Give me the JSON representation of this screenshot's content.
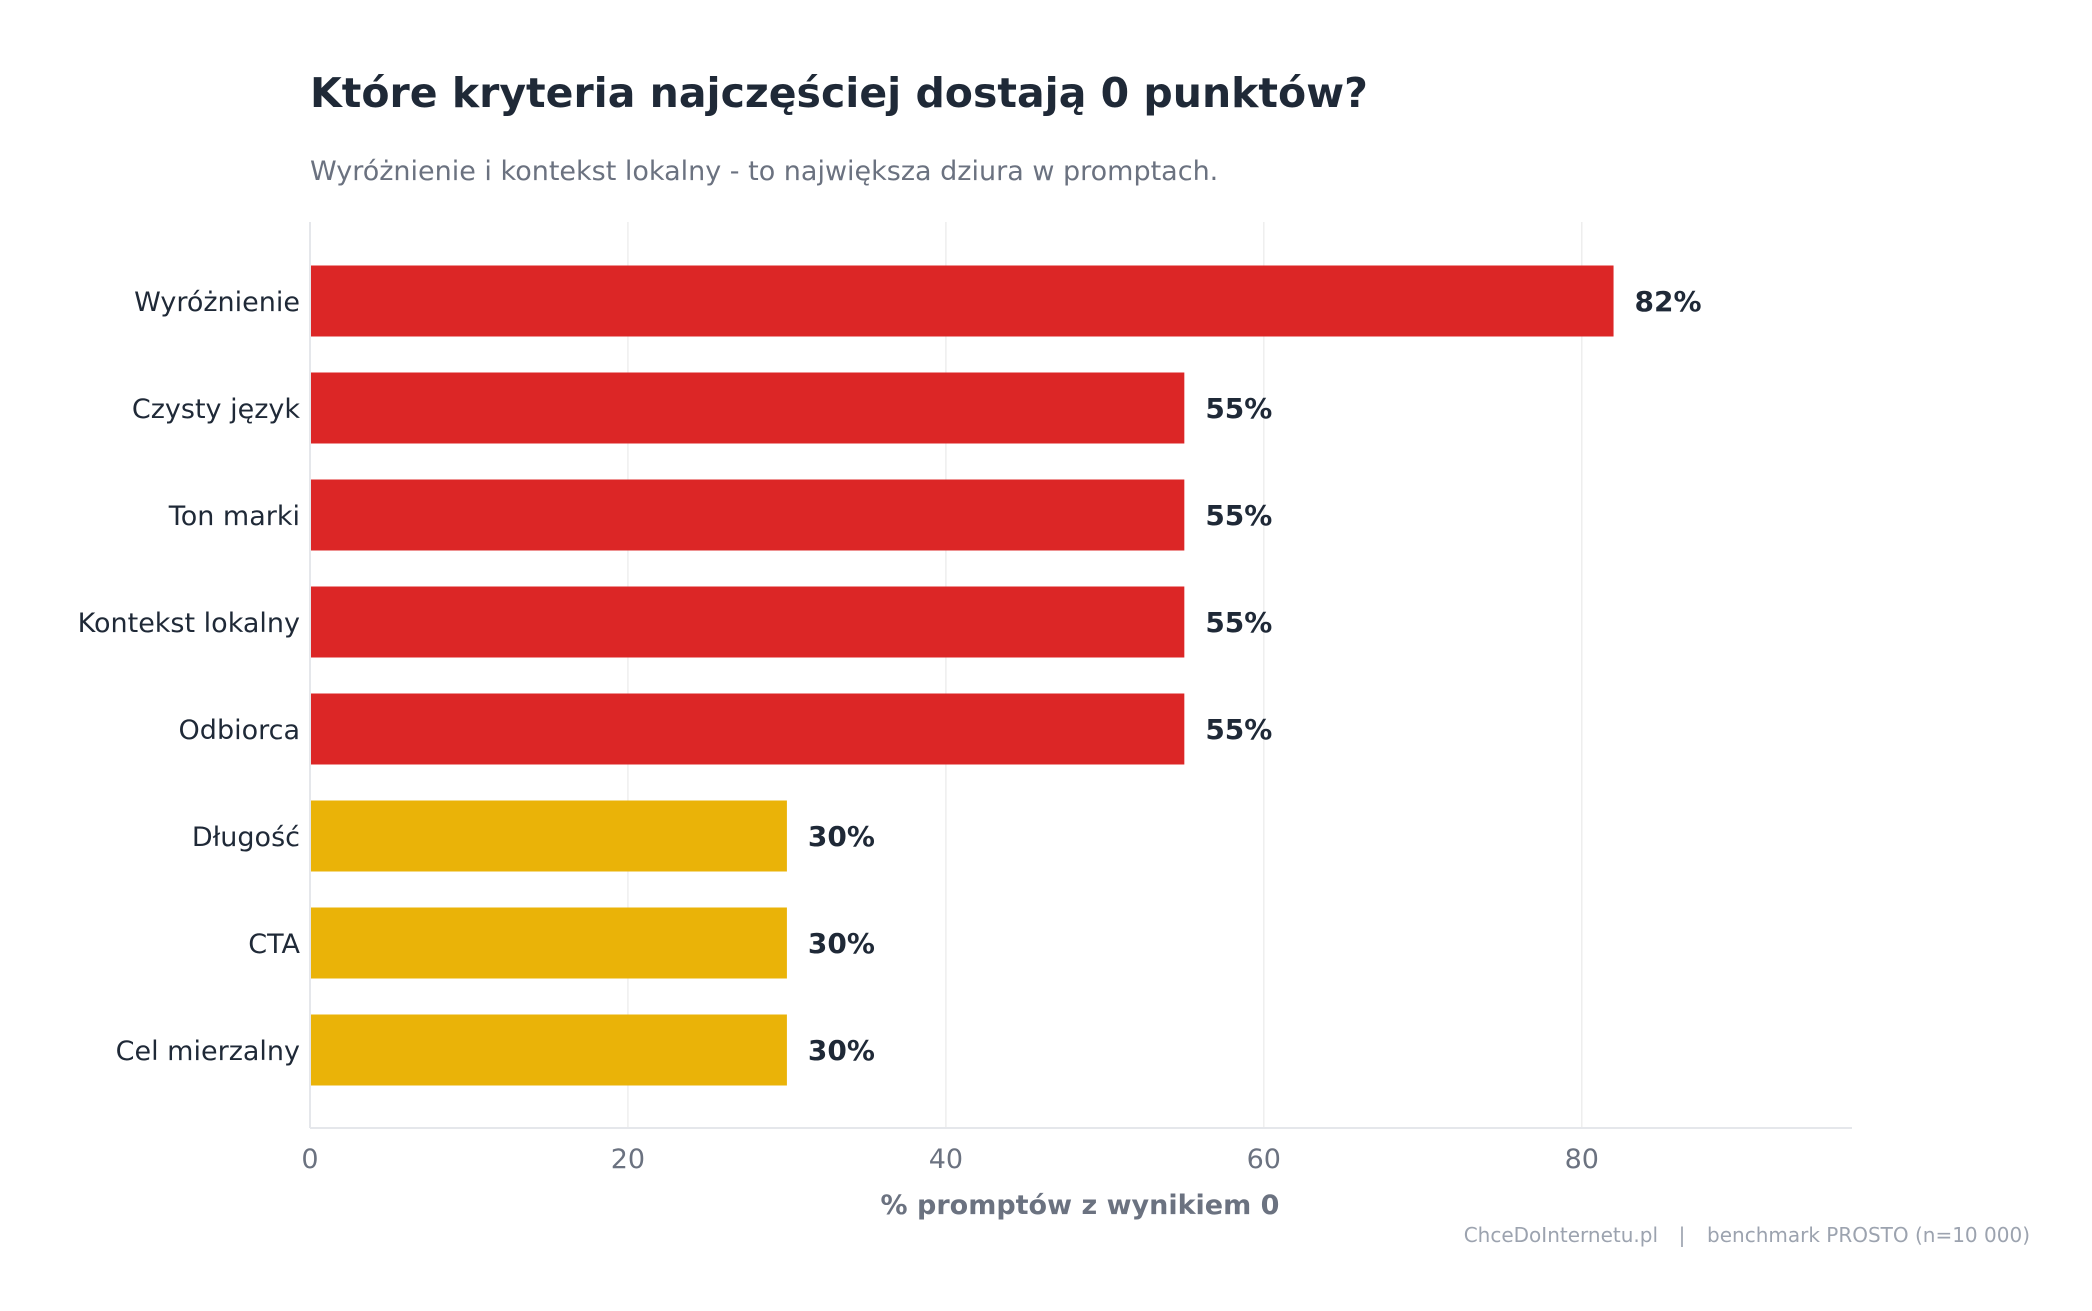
{
  "chart_data": {
    "type": "bar",
    "orientation": "horizontal",
    "title": "Które kryteria najczęściej dostają 0 punktów?",
    "subtitle": "Wyróżnienie i kontekst lokalny - to największa dziura w promptach.",
    "xlabel": "% promptów z wynikiem 0",
    "ylabel": "",
    "xlim": [
      0,
      97
    ],
    "xticks": [
      0,
      20,
      40,
      60,
      80
    ],
    "grid": true,
    "categories": [
      "Wyróżnienie",
      "Czysty język",
      "Ton marki",
      "Kontekst lokalny",
      "Odbiorca",
      "Długość",
      "CTA",
      "Cel mierzalny"
    ],
    "values": [
      82,
      55,
      55,
      55,
      55,
      30,
      30,
      30
    ],
    "value_labels": [
      "82%",
      "55%",
      "55%",
      "55%",
      "55%",
      "30%",
      "30%",
      "30%"
    ],
    "bar_colors": [
      "#dc2626",
      "#dc2626",
      "#dc2626",
      "#dc2626",
      "#dc2626",
      "#eab308",
      "#eab308",
      "#eab308"
    ]
  },
  "footer": {
    "source": "ChceDoInternetu.pl",
    "separator": "|",
    "note": "benchmark PROSTO (n=10 000)"
  },
  "colors": {
    "high": "#dc2626",
    "medium": "#eab308",
    "text": "#1f2937",
    "muted": "#6b7280",
    "footer": "#9ca3af",
    "grid": "#eeeeee"
  }
}
